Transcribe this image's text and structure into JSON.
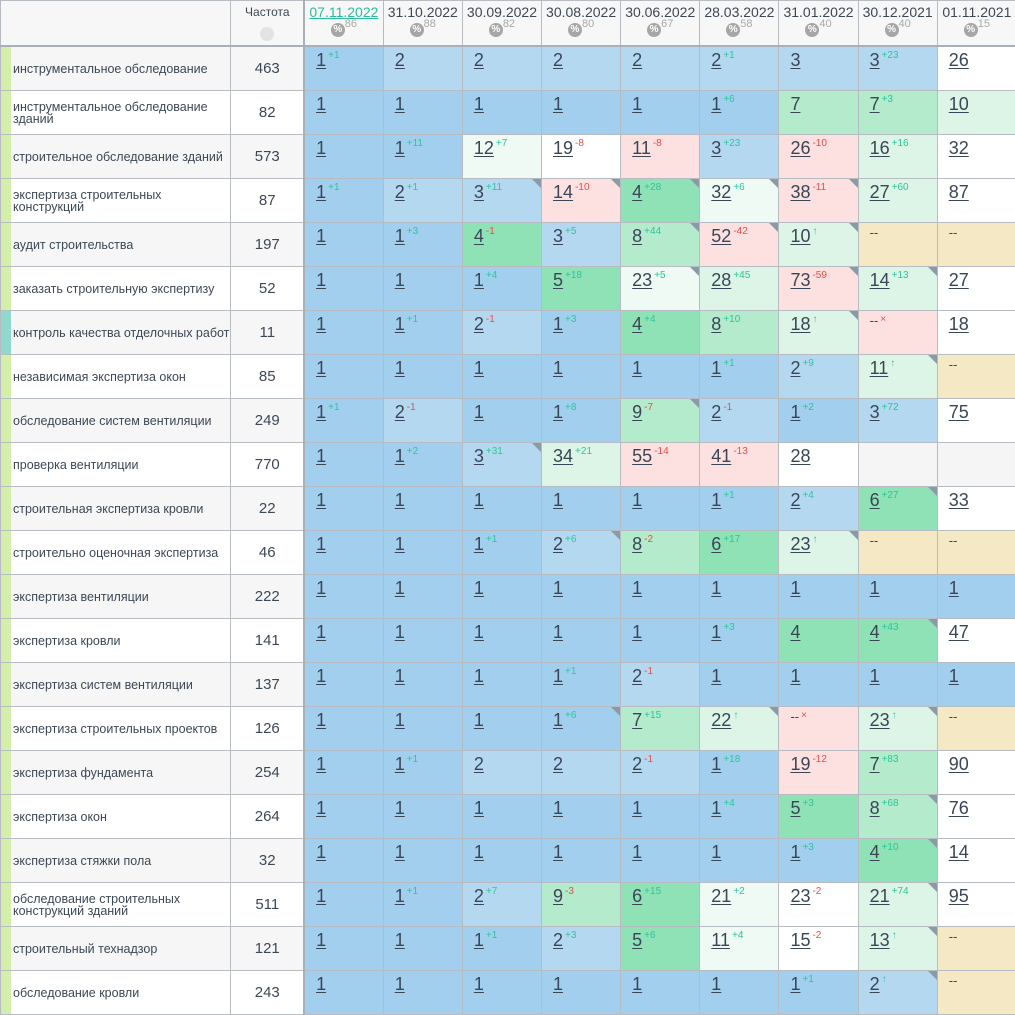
{
  "header": {
    "freq_label": "Частота",
    "freq_icon": "globe-icon",
    "dates": [
      {
        "date": "07.11.2022",
        "pct": "86",
        "link": true
      },
      {
        "date": "31.10.2022",
        "pct": "88"
      },
      {
        "date": "30.09.2022",
        "pct": "82"
      },
      {
        "date": "30.08.2022",
        "pct": "80"
      },
      {
        "date": "30.06.2022",
        "pct": "67"
      },
      {
        "date": "28.03.2022",
        "pct": "58"
      },
      {
        "date": "31.01.2022",
        "pct": "40"
      },
      {
        "date": "30.12.2021",
        "pct": "40"
      },
      {
        "date": "01.11.2021",
        "pct": "15"
      }
    ],
    "pct_symbol": "%"
  },
  "colors": {
    "A": "#a3cfee",
    "B": "#b5d8f1",
    "G": "#8fe2b5",
    "M": "#b3ebcc",
    "L": "#dcf5e7",
    "V": "#eefaf3",
    "P": "#fde0e0",
    "W": "#ffffff",
    "Y": "#f5e8c5",
    "E": "#f5f5f5",
    "bar_default": "#d3efa9",
    "bar_teal": "#8fd9cf",
    "up": "#2ec49c",
    "down": "#ee4b45",
    "link": "#2bbd9a"
  },
  "rows": [
    {
      "name": "инструментальное обследование",
      "freq": "463",
      "cells": [
        [
          "1",
          "+1",
          "A"
        ],
        [
          "2",
          "",
          "B"
        ],
        [
          "2",
          "",
          "B"
        ],
        [
          "2",
          "",
          "B"
        ],
        [
          "2",
          "",
          "B"
        ],
        [
          "2",
          "+1",
          "B"
        ],
        [
          "3",
          "",
          "B"
        ],
        [
          "3",
          "+23",
          "B"
        ],
        [
          "26",
          "",
          "W"
        ]
      ]
    },
    {
      "name": "инструментальное обследование зданий",
      "freq": "82",
      "cells": [
        [
          "1",
          "",
          "A"
        ],
        [
          "1",
          "",
          "A"
        ],
        [
          "1",
          "",
          "A"
        ],
        [
          "1",
          "",
          "A"
        ],
        [
          "1",
          "",
          "A"
        ],
        [
          "1",
          "+6",
          "A"
        ],
        [
          "7",
          "",
          "M"
        ],
        [
          "7",
          "+3",
          "M"
        ],
        [
          "10",
          "",
          "L"
        ]
      ]
    },
    {
      "name": "строительное обследование зданий",
      "freq": "573",
      "cells": [
        [
          "1",
          "",
          "A"
        ],
        [
          "1",
          "+11",
          "A"
        ],
        [
          "12",
          "+7",
          "V"
        ],
        [
          "19",
          "-8",
          "W"
        ],
        [
          "11",
          "-8",
          "P"
        ],
        [
          "3",
          "+23",
          "B"
        ],
        [
          "26",
          "-10",
          "P"
        ],
        [
          "16",
          "+16",
          "L"
        ],
        [
          "32",
          "",
          "W"
        ]
      ]
    },
    {
      "name": "экспертиза строительных конструкций",
      "freq": "87",
      "cells": [
        [
          "1",
          "+1",
          "A"
        ],
        [
          "2",
          "+1",
          "B"
        ],
        [
          "3",
          "+11",
          "B",
          1
        ],
        [
          "14",
          "-10",
          "P",
          1
        ],
        [
          "4",
          "+28",
          "G",
          1
        ],
        [
          "32",
          "+6",
          "V",
          1
        ],
        [
          "38",
          "-11",
          "P",
          1
        ],
        [
          "27",
          "+60",
          "L"
        ],
        [
          "87",
          "",
          "W"
        ]
      ]
    },
    {
      "name": "аудит строительства",
      "freq": "197",
      "cells": [
        [
          "1",
          "",
          "A"
        ],
        [
          "1",
          "+3",
          "A"
        ],
        [
          "4",
          "-1",
          "G"
        ],
        [
          "3",
          "+5",
          "B"
        ],
        [
          "8",
          "+44",
          "M",
          1
        ],
        [
          "52",
          "-42",
          "P",
          1
        ],
        [
          "10",
          "↑",
          "L",
          1
        ],
        [
          "--",
          "",
          "Y"
        ],
        [
          "--",
          "",
          "Y"
        ]
      ]
    },
    {
      "name": "заказать строительную экспертизу",
      "freq": "52",
      "cells": [
        [
          "1",
          "",
          "A"
        ],
        [
          "1",
          "",
          "A"
        ],
        [
          "1",
          "+4",
          "A"
        ],
        [
          "5",
          "+18",
          "G"
        ],
        [
          "23",
          "+5",
          "V",
          1
        ],
        [
          "28",
          "+45",
          "L"
        ],
        [
          "73",
          "-59",
          "P",
          1
        ],
        [
          "14",
          "+13",
          "L",
          1
        ],
        [
          "27",
          "",
          "W"
        ]
      ]
    },
    {
      "name": "контроль качества отделочных работ",
      "freq": "11",
      "bar": "teal",
      "cells": [
        [
          "1",
          "",
          "A"
        ],
        [
          "1",
          "+1",
          "A"
        ],
        [
          "2",
          "-1",
          "B"
        ],
        [
          "1",
          "+3",
          "A"
        ],
        [
          "4",
          "+4",
          "G"
        ],
        [
          "8",
          "+10",
          "M"
        ],
        [
          "18",
          "↑",
          "L",
          1
        ],
        [
          "--",
          "×",
          "P"
        ],
        [
          "18",
          "",
          "W"
        ]
      ]
    },
    {
      "name": "независимая экспертиза окон",
      "freq": "85",
      "cells": [
        [
          "1",
          "",
          "A"
        ],
        [
          "1",
          "",
          "A"
        ],
        [
          "1",
          "",
          "A"
        ],
        [
          "1",
          "",
          "A"
        ],
        [
          "1",
          "",
          "A"
        ],
        [
          "1",
          "+1",
          "A"
        ],
        [
          "2",
          "+9",
          "B"
        ],
        [
          "11",
          "↑",
          "L",
          1
        ],
        [
          "--",
          "",
          "Y"
        ]
      ]
    },
    {
      "name": "обследование систем вентиляции",
      "freq": "249",
      "cells": [
        [
          "1",
          "+1",
          "A"
        ],
        [
          "2",
          "-1",
          "B"
        ],
        [
          "1",
          "",
          "A"
        ],
        [
          "1",
          "+8",
          "A"
        ],
        [
          "9",
          "-7",
          "M",
          1
        ],
        [
          "2",
          "-1",
          "B"
        ],
        [
          "1",
          "+2",
          "A"
        ],
        [
          "3",
          "+72",
          "B"
        ],
        [
          "75",
          "",
          "W"
        ]
      ]
    },
    {
      "name": "проверка вентиляции",
      "freq": "770",
      "cells": [
        [
          "1",
          "",
          "A"
        ],
        [
          "1",
          "+2",
          "A"
        ],
        [
          "3",
          "+31",
          "B",
          1
        ],
        [
          "34",
          "+21",
          "L"
        ],
        [
          "55",
          "-14",
          "P"
        ],
        [
          "41",
          "-13",
          "P"
        ],
        [
          "28",
          "",
          "W"
        ],
        [
          "",
          "",
          "E"
        ],
        [
          "",
          "",
          "E"
        ]
      ]
    },
    {
      "name": "строительная экспертиза кровли",
      "freq": "22",
      "cells": [
        [
          "1",
          "",
          "A"
        ],
        [
          "1",
          "",
          "A"
        ],
        [
          "1",
          "",
          "A"
        ],
        [
          "1",
          "",
          "A"
        ],
        [
          "1",
          "",
          "A"
        ],
        [
          "1",
          "+1",
          "A"
        ],
        [
          "2",
          "+4",
          "B"
        ],
        [
          "6",
          "+27",
          "G",
          1
        ],
        [
          "33",
          "",
          "W"
        ]
      ]
    },
    {
      "name": "строительно оценочная экспертиза",
      "freq": "46",
      "cells": [
        [
          "1",
          "",
          "A"
        ],
        [
          "1",
          "",
          "A"
        ],
        [
          "1",
          "+1",
          "A"
        ],
        [
          "2",
          "+6",
          "B",
          1
        ],
        [
          "8",
          "-2",
          "M"
        ],
        [
          "6",
          "+17",
          "G"
        ],
        [
          "23",
          "↑",
          "L",
          1
        ],
        [
          "--",
          "",
          "Y"
        ],
        [
          "--",
          "",
          "Y"
        ]
      ]
    },
    {
      "name": "экспертиза вентиляции",
      "freq": "222",
      "cells": [
        [
          "1",
          "",
          "A"
        ],
        [
          "1",
          "",
          "A"
        ],
        [
          "1",
          "",
          "A"
        ],
        [
          "1",
          "",
          "A"
        ],
        [
          "1",
          "",
          "A"
        ],
        [
          "1",
          "",
          "A"
        ],
        [
          "1",
          "",
          "A"
        ],
        [
          "1",
          "",
          "A"
        ],
        [
          "1",
          "",
          "A"
        ]
      ]
    },
    {
      "name": "экспертиза кровли",
      "freq": "141",
      "cells": [
        [
          "1",
          "",
          "A"
        ],
        [
          "1",
          "",
          "A"
        ],
        [
          "1",
          "",
          "A"
        ],
        [
          "1",
          "",
          "A"
        ],
        [
          "1",
          "",
          "A"
        ],
        [
          "1",
          "+3",
          "A"
        ],
        [
          "4",
          "",
          "G"
        ],
        [
          "4",
          "+43",
          "G",
          1
        ],
        [
          "47",
          "",
          "W"
        ]
      ]
    },
    {
      "name": "экспертиза систем вентиляции",
      "freq": "137",
      "cells": [
        [
          "1",
          "",
          "A"
        ],
        [
          "1",
          "",
          "A"
        ],
        [
          "1",
          "",
          "A"
        ],
        [
          "1",
          "+1",
          "A"
        ],
        [
          "2",
          "-1",
          "B"
        ],
        [
          "1",
          "",
          "A"
        ],
        [
          "1",
          "",
          "A"
        ],
        [
          "1",
          "",
          "A"
        ],
        [
          "1",
          "",
          "A"
        ]
      ]
    },
    {
      "name": "экспертиза строительных проектов",
      "freq": "126",
      "cells": [
        [
          "1",
          "",
          "A"
        ],
        [
          "1",
          "",
          "A"
        ],
        [
          "1",
          "",
          "A"
        ],
        [
          "1",
          "+6",
          "A",
          1
        ],
        [
          "7",
          "+15",
          "M"
        ],
        [
          "22",
          "↑",
          "L",
          1
        ],
        [
          "--",
          "×",
          "P"
        ],
        [
          "23",
          "↑",
          "L",
          1
        ],
        [
          "--",
          "",
          "Y"
        ]
      ]
    },
    {
      "name": "экспертиза фундамента",
      "freq": "254",
      "cells": [
        [
          "1",
          "",
          "A"
        ],
        [
          "1",
          "+1",
          "A"
        ],
        [
          "2",
          "",
          "B"
        ],
        [
          "2",
          "",
          "B"
        ],
        [
          "2",
          "-1",
          "B"
        ],
        [
          "1",
          "+18",
          "A"
        ],
        [
          "19",
          "-12",
          "P"
        ],
        [
          "7",
          "+83",
          "M"
        ],
        [
          "90",
          "",
          "W"
        ]
      ]
    },
    {
      "name": "экспертиза окон",
      "freq": "264",
      "cells": [
        [
          "1",
          "",
          "A"
        ],
        [
          "1",
          "",
          "A"
        ],
        [
          "1",
          "",
          "A"
        ],
        [
          "1",
          "",
          "A"
        ],
        [
          "1",
          "",
          "A"
        ],
        [
          "1",
          "+4",
          "A"
        ],
        [
          "5",
          "+3",
          "G"
        ],
        [
          "8",
          "+68",
          "M",
          1
        ],
        [
          "76",
          "",
          "W"
        ]
      ]
    },
    {
      "name": "экспертиза стяжки пола",
      "freq": "32",
      "cells": [
        [
          "1",
          "",
          "A"
        ],
        [
          "1",
          "",
          "A"
        ],
        [
          "1",
          "",
          "A"
        ],
        [
          "1",
          "",
          "A"
        ],
        [
          "1",
          "",
          "A"
        ],
        [
          "1",
          "",
          "A"
        ],
        [
          "1",
          "+3",
          "A"
        ],
        [
          "4",
          "+10",
          "G",
          1
        ],
        [
          "14",
          "",
          "W"
        ]
      ]
    },
    {
      "name": "обследование строительных конструкций зданий",
      "freq": "511",
      "cells": [
        [
          "1",
          "",
          "A"
        ],
        [
          "1",
          "+1",
          "A"
        ],
        [
          "2",
          "+7",
          "B"
        ],
        [
          "9",
          "-3",
          "M"
        ],
        [
          "6",
          "+15",
          "G"
        ],
        [
          "21",
          "+2",
          "V"
        ],
        [
          "23",
          "-2",
          "W"
        ],
        [
          "21",
          "+74",
          "L",
          1
        ],
        [
          "95",
          "",
          "W"
        ]
      ]
    },
    {
      "name": "строительный технадзор",
      "freq": "121",
      "cells": [
        [
          "1",
          "",
          "A"
        ],
        [
          "1",
          "",
          "A"
        ],
        [
          "1",
          "+1",
          "A"
        ],
        [
          "2",
          "+3",
          "B"
        ],
        [
          "5",
          "+6",
          "G"
        ],
        [
          "11",
          "+4",
          "V"
        ],
        [
          "15",
          "-2",
          "W"
        ],
        [
          "13",
          "↑",
          "L",
          1
        ],
        [
          "--",
          "",
          "Y"
        ]
      ]
    },
    {
      "name": "обследование кровли",
      "freq": "243",
      "cells": [
        [
          "1",
          "",
          "A"
        ],
        [
          "1",
          "",
          "A"
        ],
        [
          "1",
          "",
          "A"
        ],
        [
          "1",
          "",
          "A"
        ],
        [
          "1",
          "",
          "A"
        ],
        [
          "1",
          "",
          "A"
        ],
        [
          "1",
          "+1",
          "A"
        ],
        [
          "2",
          "↑",
          "B",
          1
        ],
        [
          "--",
          "",
          "Y"
        ]
      ]
    }
  ]
}
